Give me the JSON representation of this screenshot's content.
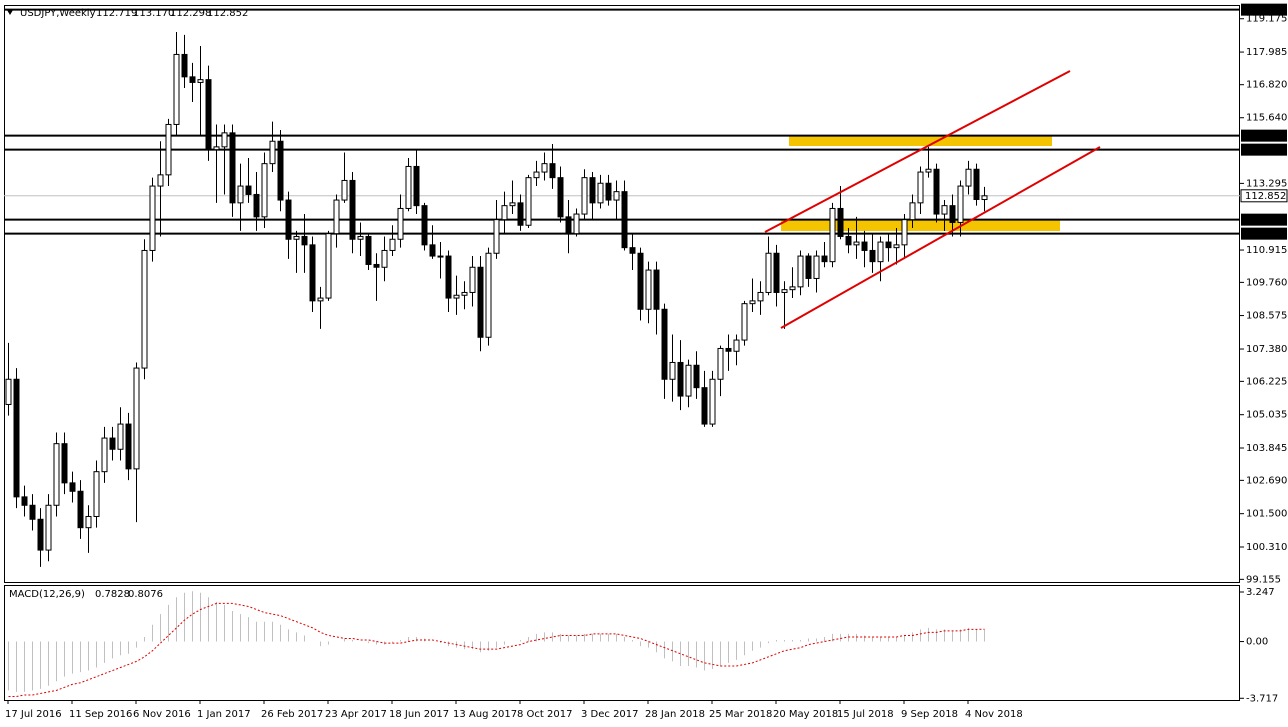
{
  "chart_data": {
    "type": "candlestick",
    "title": "USDJPY,Weekly",
    "legend_values": [
      "112.719",
      "113.170",
      "112.298",
      "112.852"
    ],
    "categories": [
      "17 Jul 2016",
      null,
      null,
      null,
      null,
      null,
      null,
      null,
      "11 Sep 2016",
      null,
      null,
      null,
      null,
      null,
      null,
      null,
      "6 Nov 2016",
      null,
      null,
      null,
      null,
      null,
      null,
      null,
      "1 Jan 2017",
      null,
      null,
      null,
      null,
      null,
      null,
      null,
      "26 Feb 2017",
      null,
      null,
      null,
      null,
      null,
      null,
      null,
      "23 Apr 2017",
      null,
      null,
      null,
      null,
      null,
      null,
      null,
      "18 Jun 2017",
      null,
      null,
      null,
      null,
      null,
      null,
      null,
      "13 Aug 2017",
      null,
      null,
      null,
      null,
      null,
      null,
      null,
      "8 Oct 2017",
      null,
      null,
      null,
      null,
      null,
      null,
      null,
      "3 Dec 2017",
      null,
      null,
      null,
      null,
      null,
      null,
      null,
      "28 Jan 2018",
      null,
      null,
      null,
      null,
      null,
      null,
      null,
      "25 Mar 2018",
      null,
      null,
      null,
      null,
      null,
      null,
      null,
      "20 May 2018",
      null,
      null,
      null,
      null,
      null,
      null,
      null,
      "15 Jul 2018",
      null,
      null,
      null,
      null,
      null,
      null,
      null,
      "9 Sep 2018",
      null,
      null,
      null,
      null,
      null,
      null,
      null,
      "4 Nov 2018",
      null,
      null
    ],
    "open": [
      105.4,
      106.3,
      102.1,
      101.8,
      101.3,
      100.2,
      101.8,
      104.0,
      102.6,
      102.3,
      101.0,
      101.4,
      103.0,
      104.2,
      103.8,
      104.7,
      103.1,
      106.7,
      110.9,
      113.2,
      113.6,
      115.4,
      117.9,
      117.1,
      116.9,
      117.0,
      114.5,
      114.6,
      115.1,
      112.6,
      113.2,
      112.9,
      112.1,
      114.0,
      114.8,
      112.7,
      111.3,
      111.4,
      111.1,
      109.1,
      109.2,
      111.5,
      112.7,
      113.4,
      111.3,
      111.4,
      110.4,
      110.3,
      110.9,
      111.3,
      112.4,
      113.9,
      112.5,
      111.1,
      110.7,
      110.7,
      109.2,
      109.3,
      109.4,
      110.3,
      107.8,
      110.8,
      112.0,
      112.5,
      112.6,
      111.8,
      113.5,
      113.7,
      114.0,
      113.5,
      112.1,
      111.5,
      112.2,
      113.5,
      112.6,
      113.3,
      112.7,
      113.0,
      111.0,
      110.8,
      108.8,
      110.2,
      108.8,
      106.3,
      106.9,
      105.7,
      106.8,
      106.0,
      104.7,
      106.3,
      107.4,
      107.3,
      107.7,
      109.0,
      109.1,
      109.4,
      110.8,
      109.4,
      109.5,
      109.6,
      110.7,
      109.9,
      110.7,
      110.5,
      112.4,
      111.4,
      111.1,
      111.2,
      110.9,
      110.5,
      111.2,
      111.0,
      111.1,
      112.0,
      112.6,
      113.7,
      113.8,
      112.2,
      112.5,
      111.9,
      113.2,
      113.8,
      112.719
    ],
    "high": [
      107.6,
      106.7,
      102.5,
      102.2,
      101.7,
      102.2,
      104.4,
      104.4,
      103.0,
      102.7,
      101.8,
      103.4,
      104.6,
      104.6,
      105.3,
      105.1,
      106.9,
      111.3,
      113.5,
      114.8,
      115.6,
      118.7,
      118.6,
      117.6,
      118.2,
      117.5,
      115.4,
      115.4,
      115.4,
      114.0,
      114.2,
      113.7,
      114.4,
      115.5,
      115.2,
      113.0,
      111.6,
      112.2,
      111.4,
      109.6,
      111.6,
      112.9,
      114.4,
      113.7,
      111.9,
      111.5,
      110.8,
      111.4,
      111.8,
      112.9,
      114.2,
      114.5,
      112.6,
      111.8,
      111.2,
      110.9,
      110.0,
      109.8,
      110.7,
      110.7,
      111.0,
      112.7,
      113.0,
      113.4,
      112.9,
      113.6,
      114.1,
      114.4,
      114.7,
      113.9,
      112.7,
      112.4,
      113.8,
      113.7,
      113.6,
      113.6,
      113.4,
      113.4,
      111.5,
      111.0,
      110.5,
      110.5,
      109.0,
      107.9,
      107.7,
      107.0,
      107.3,
      106.6,
      106.6,
      107.5,
      107.9,
      107.9,
      109.1,
      109.9,
      109.8,
      111.4,
      111.1,
      109.8,
      110.3,
      110.9,
      110.8,
      110.9,
      111.2,
      112.6,
      113.2,
      111.7,
      112.1,
      111.6,
      111.5,
      111.4,
      111.5,
      111.7,
      112.2,
      112.9,
      113.9,
      114.6,
      114.0,
      112.7,
      112.9,
      113.4,
      114.1,
      114.0,
      113.17
    ],
    "low": [
      105.0,
      101.7,
      101.4,
      100.9,
      99.6,
      99.8,
      101.4,
      102.2,
      101.9,
      100.6,
      100.1,
      101.0,
      102.6,
      103.4,
      103.4,
      102.7,
      101.2,
      106.3,
      110.5,
      111.4,
      113.2,
      115.0,
      116.7,
      116.2,
      115.0,
      114.1,
      112.6,
      112.9,
      112.1,
      111.6,
      112.6,
      111.6,
      111.7,
      113.7,
      112.3,
      110.6,
      110.1,
      110.1,
      108.7,
      108.1,
      109.1,
      111.0,
      112.6,
      110.8,
      110.7,
      110.2,
      109.1,
      109.8,
      110.7,
      111.0,
      112.3,
      112.2,
      110.9,
      110.6,
      109.9,
      108.7,
      108.6,
      108.8,
      108.9,
      107.3,
      107.5,
      110.6,
      111.5,
      112.2,
      111.6,
      111.7,
      113.2,
      113.4,
      113.1,
      111.9,
      110.8,
      111.4,
      112.0,
      112.0,
      112.4,
      112.5,
      112.0,
      110.9,
      110.2,
      108.4,
      108.3,
      107.9,
      105.6,
      105.5,
      105.2,
      105.3,
      105.6,
      104.6,
      104.6,
      105.7,
      106.6,
      106.8,
      107.5,
      108.7,
      108.6,
      109.3,
      108.9,
      108.1,
      109.2,
      109.3,
      109.6,
      109.4,
      110.3,
      110.3,
      111.3,
      110.8,
      110.6,
      110.3,
      110.1,
      109.8,
      110.5,
      110.4,
      110.6,
      111.7,
      112.2,
      113.5,
      111.9,
      111.6,
      111.4,
      111.4,
      112.9,
      112.5,
      112.298
    ],
    "close": [
      106.3,
      102.1,
      101.8,
      101.3,
      100.2,
      101.8,
      104.0,
      102.6,
      102.3,
      101.0,
      101.4,
      103.0,
      104.2,
      103.8,
      104.7,
      103.1,
      106.7,
      110.9,
      113.2,
      113.6,
      115.4,
      117.9,
      117.1,
      116.9,
      117.0,
      114.5,
      114.6,
      115.1,
      112.6,
      113.2,
      112.9,
      112.1,
      114.0,
      114.8,
      112.7,
      111.3,
      111.4,
      111.1,
      109.1,
      109.2,
      111.5,
      112.7,
      113.4,
      111.3,
      111.4,
      110.4,
      110.3,
      110.9,
      111.3,
      112.4,
      113.9,
      112.5,
      111.1,
      110.7,
      110.7,
      109.2,
      109.3,
      109.4,
      110.3,
      107.8,
      110.8,
      112.0,
      112.5,
      112.6,
      111.8,
      113.5,
      113.7,
      114.0,
      113.5,
      112.1,
      111.5,
      112.2,
      113.5,
      112.6,
      113.3,
      112.7,
      113.0,
      111.0,
      110.8,
      108.8,
      110.2,
      108.8,
      106.3,
      106.9,
      105.7,
      106.8,
      106.0,
      104.7,
      106.3,
      107.4,
      107.3,
      107.7,
      109.0,
      109.1,
      109.4,
      110.8,
      109.4,
      109.5,
      109.6,
      110.7,
      109.9,
      110.7,
      110.5,
      112.4,
      111.4,
      111.1,
      111.2,
      110.9,
      110.5,
      111.2,
      111.0,
      111.1,
      112.0,
      112.6,
      113.7,
      113.8,
      112.2,
      112.5,
      111.9,
      113.2,
      113.8,
      112.72,
      112.852
    ],
    "up_color": "#ffffff",
    "down_color": "#000000",
    "ylim": [
      99.06,
      119.63
    ],
    "yticks": [
      119.175,
      117.985,
      {
        "value": 116.82,
        "label": "116.820"
      },
      {
        "value": 115.64,
        "label": "115.640"
      },
      113.295,
      110.915,
      {
        "value": 109.76,
        "label": "109.760"
      },
      108.575,
      {
        "value": 107.38,
        "label": "107.380"
      },
      106.225,
      105.035,
      103.845,
      {
        "value": 102.69,
        "label": "102.690"
      },
      {
        "value": 101.5,
        "label": "101.500"
      },
      {
        "value": 100.31,
        "label": "100.310"
      },
      99.155
    ],
    "levels": [
      {
        "value": 119.5,
        "label": "119.500"
      },
      {
        "value": 115,
        "label": "115.000"
      },
      {
        "value": 114.5,
        "label": "114.500"
      },
      {
        "value": 112,
        "label": "112.000"
      },
      {
        "value": 111.5,
        "label": "111.500"
      }
    ],
    "grid": false,
    "indicator": {
      "type": "macd",
      "title": "MACD(12,26,9)",
      "ylim": [
        -3.83,
        3.64
      ],
      "yticks": [
        3.247,
        {
          "value": 0,
          "label": "0.00"
        },
        -3.717
      ],
      "histogram": {
        "color": "#c0c0c0",
        "values": [
          -3.2,
          -3.3,
          -3.3,
          -3.2,
          -3.1,
          -2.9,
          -2.6,
          -2.3,
          -2.1,
          -2.0,
          -1.9,
          -1.7,
          -1.4,
          -1.1,
          -0.9,
          -0.8,
          -0.4,
          0.3,
          1.1,
          1.8,
          2.4,
          2.9,
          3.2,
          3.3,
          3.2,
          2.9,
          2.6,
          2.4,
          2.0,
          1.8,
          1.6,
          1.3,
          1.3,
          1.3,
          1.1,
          0.8,
          0.6,
          0.4,
          0.0,
          -0.3,
          -0.2,
          0.0,
          0.2,
          0.1,
          0.0,
          -0.1,
          -0.2,
          -0.2,
          -0.1,
          0.1,
          0.3,
          0.3,
          0.2,
          0.0,
          -0.1,
          -0.3,
          -0.4,
          -0.5,
          -0.5,
          -0.7,
          -0.6,
          -0.4,
          -0.2,
          0.0,
          0.1,
          0.3,
          0.5,
          0.6,
          0.6,
          0.5,
          0.4,
          0.4,
          0.5,
          0.5,
          0.5,
          0.5,
          0.5,
          0.3,
          0.1,
          -0.3,
          -0.4,
          -0.7,
          -1.1,
          -1.3,
          -1.6,
          -1.6,
          -1.7,
          -1.9,
          -1.8,
          -1.6,
          -1.4,
          -1.2,
          -0.9,
          -0.6,
          -0.4,
          -0.1,
          0.1,
          0.1,
          0.1,
          0.1,
          0.2,
          0.2,
          0.3,
          0.5,
          0.5,
          0.5,
          0.5,
          0.4,
          0.3,
          0.3,
          0.3,
          0.3,
          0.4,
          0.6,
          0.8,
          0.9,
          0.8,
          0.8,
          0.7,
          0.8,
          0.9,
          0.8,
          0.7828
        ]
      },
      "signal": {
        "color": "#e00000",
        "values": [
          -3.6,
          -3.6,
          -3.5,
          -3.5,
          -3.4,
          -3.3,
          -3.2,
          -3.0,
          -2.8,
          -2.7,
          -2.5,
          -2.3,
          -2.1,
          -1.9,
          -1.7,
          -1.5,
          -1.3,
          -1.0,
          -0.6,
          -0.1,
          0.4,
          0.9,
          1.4,
          1.8,
          2.1,
          2.3,
          2.5,
          2.5,
          2.5,
          2.4,
          2.3,
          2.1,
          1.9,
          1.8,
          1.7,
          1.5,
          1.3,
          1.1,
          0.9,
          0.6,
          0.4,
          0.3,
          0.2,
          0.2,
          0.1,
          0.1,
          0.0,
          -0.1,
          -0.1,
          -0.1,
          0.0,
          0.1,
          0.1,
          0.1,
          0.0,
          -0.1,
          -0.2,
          -0.3,
          -0.4,
          -0.5,
          -0.5,
          -0.5,
          -0.4,
          -0.3,
          -0.2,
          0.0,
          0.1,
          0.2,
          0.3,
          0.4,
          0.4,
          0.4,
          0.4,
          0.5,
          0.5,
          0.5,
          0.5,
          0.4,
          0.3,
          0.2,
          0.0,
          -0.2,
          -0.4,
          -0.6,
          -0.8,
          -1.0,
          -1.2,
          -1.4,
          -1.5,
          -1.6,
          -1.6,
          -1.6,
          -1.5,
          -1.4,
          -1.2,
          -1.0,
          -0.8,
          -0.6,
          -0.5,
          -0.4,
          -0.2,
          -0.1,
          0.0,
          0.1,
          0.2,
          0.3,
          0.3,
          0.3,
          0.3,
          0.3,
          0.3,
          0.3,
          0.4,
          0.4,
          0.5,
          0.6,
          0.6,
          0.7,
          0.7,
          0.7,
          0.8,
          0.8,
          0.8076
        ]
      }
    }
  }
}
